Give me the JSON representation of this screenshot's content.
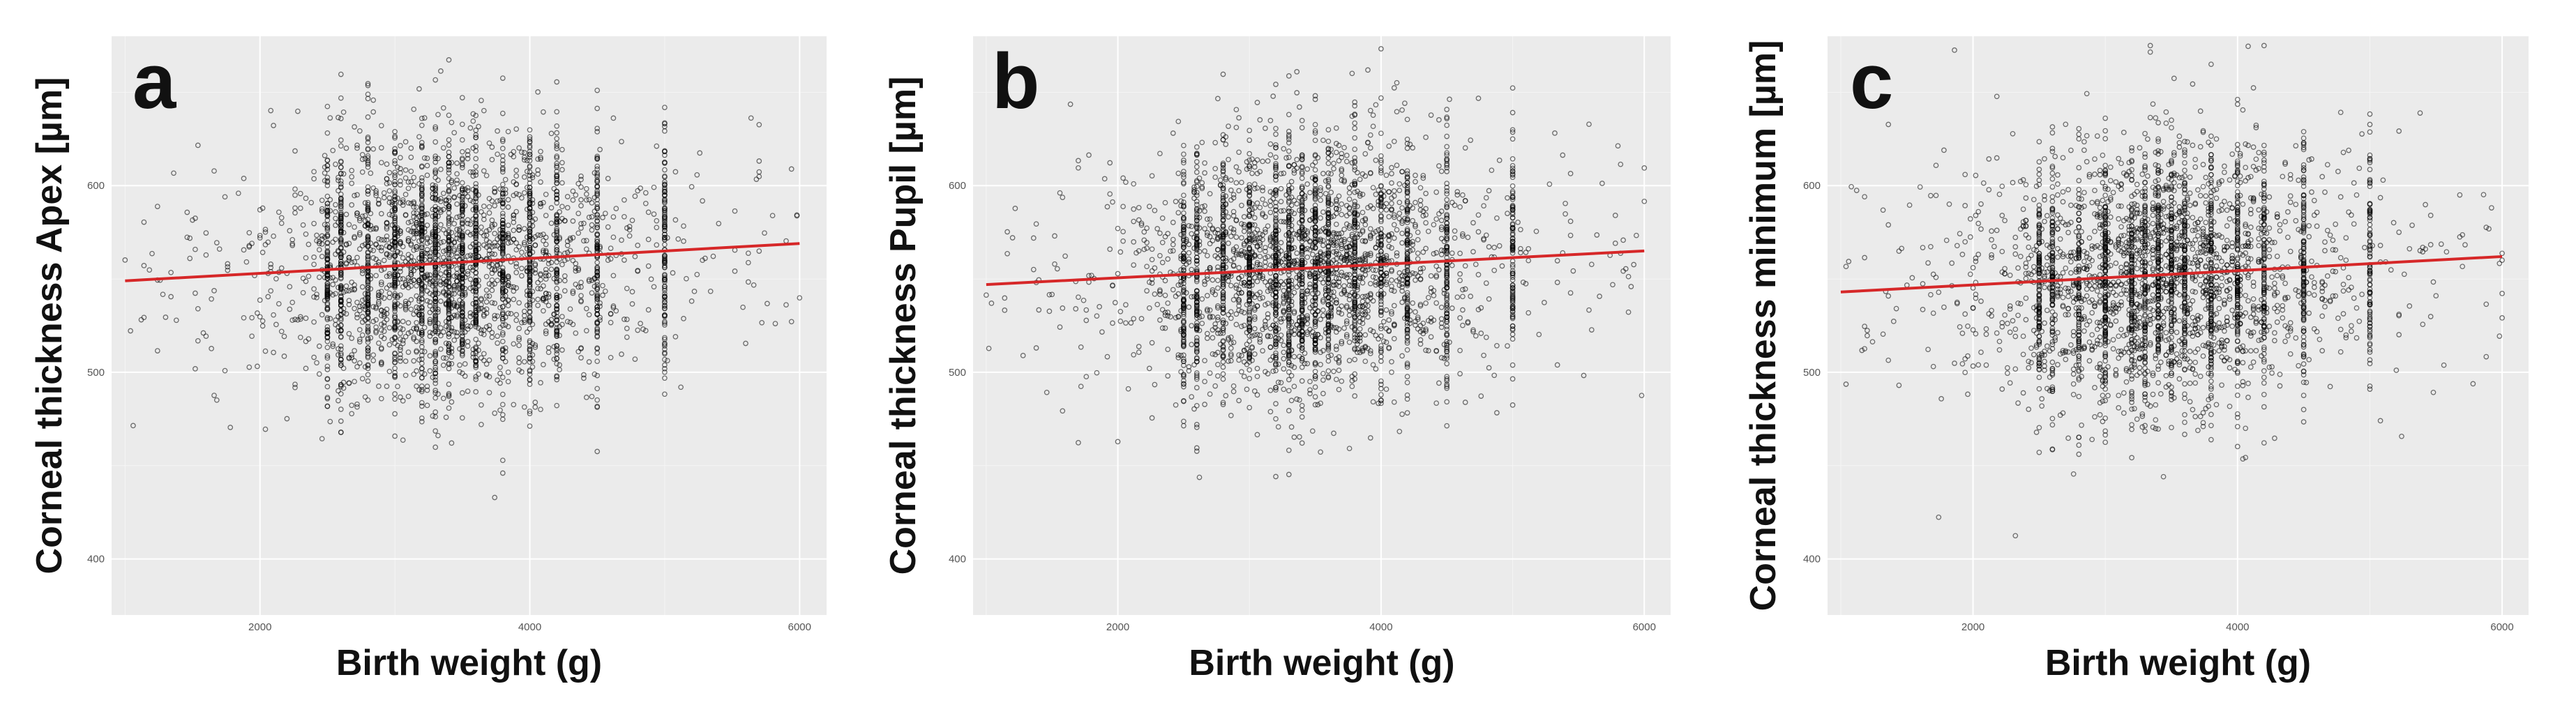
{
  "chart_data": [
    {
      "type": "scatter",
      "panel_label": "a",
      "xlabel": "Birth weight (g)",
      "ylabel": "Corneal thickness Apex [µm]",
      "xlim": [
        900,
        6200
      ],
      "ylim": [
        370,
        680
      ],
      "x_ticks": [
        2000,
        4000,
        6000
      ],
      "x_tick_labels": [
        "2000",
        "4000",
        "6000"
      ],
      "y_ticks": [
        400,
        500,
        600
      ],
      "y_tick_labels": [
        "400",
        "500",
        "600"
      ],
      "point_count": 3400,
      "point_cloud": {
        "x_mean": 3400,
        "x_sd": 650,
        "y_mean": 556,
        "y_sd": 34
      },
      "fit_line": {
        "x": [
          1000,
          6000
        ],
        "y": [
          549,
          569
        ]
      },
      "fit_color": "#d62728",
      "grid": true,
      "background": "#ebebeb"
    },
    {
      "type": "scatter",
      "panel_label": "b",
      "xlabel": "Birth weight (g)",
      "ylabel": "Corneal thickness Pupil [µm]",
      "xlim": [
        900,
        6200
      ],
      "ylim": [
        370,
        680
      ],
      "x_ticks": [
        2000,
        4000,
        6000
      ],
      "x_tick_labels": [
        "2000",
        "4000",
        "6000"
      ],
      "y_ticks": [
        400,
        500,
        600
      ],
      "y_tick_labels": [
        "400",
        "500",
        "600"
      ],
      "point_count": 3400,
      "point_cloud": {
        "x_mean": 3400,
        "x_sd": 650,
        "y_mean": 555,
        "y_sd": 34
      },
      "fit_line": {
        "x": [
          1000,
          6000
        ],
        "y": [
          547,
          565
        ]
      },
      "fit_color": "#d62728",
      "grid": true,
      "background": "#ebebeb"
    },
    {
      "type": "scatter",
      "panel_label": "c",
      "xlabel": "Birth weight (g)",
      "ylabel": "Corneal thickness minimum [µm]",
      "xlim": [
        900,
        6200
      ],
      "ylim": [
        370,
        680
      ],
      "x_ticks": [
        2000,
        4000,
        6000
      ],
      "x_tick_labels": [
        "2000",
        "4000",
        "6000"
      ],
      "y_ticks": [
        400,
        500,
        600
      ],
      "y_tick_labels": [
        "400",
        "500",
        "600"
      ],
      "point_count": 3400,
      "point_cloud": {
        "x_mean": 3400,
        "x_sd": 650,
        "y_mean": 550,
        "y_sd": 34
      },
      "fit_line": {
        "x": [
          1000,
          6000
        ],
        "y": [
          543,
          562
        ]
      },
      "fit_color": "#d62728",
      "grid": true,
      "background": "#ebebeb"
    }
  ]
}
